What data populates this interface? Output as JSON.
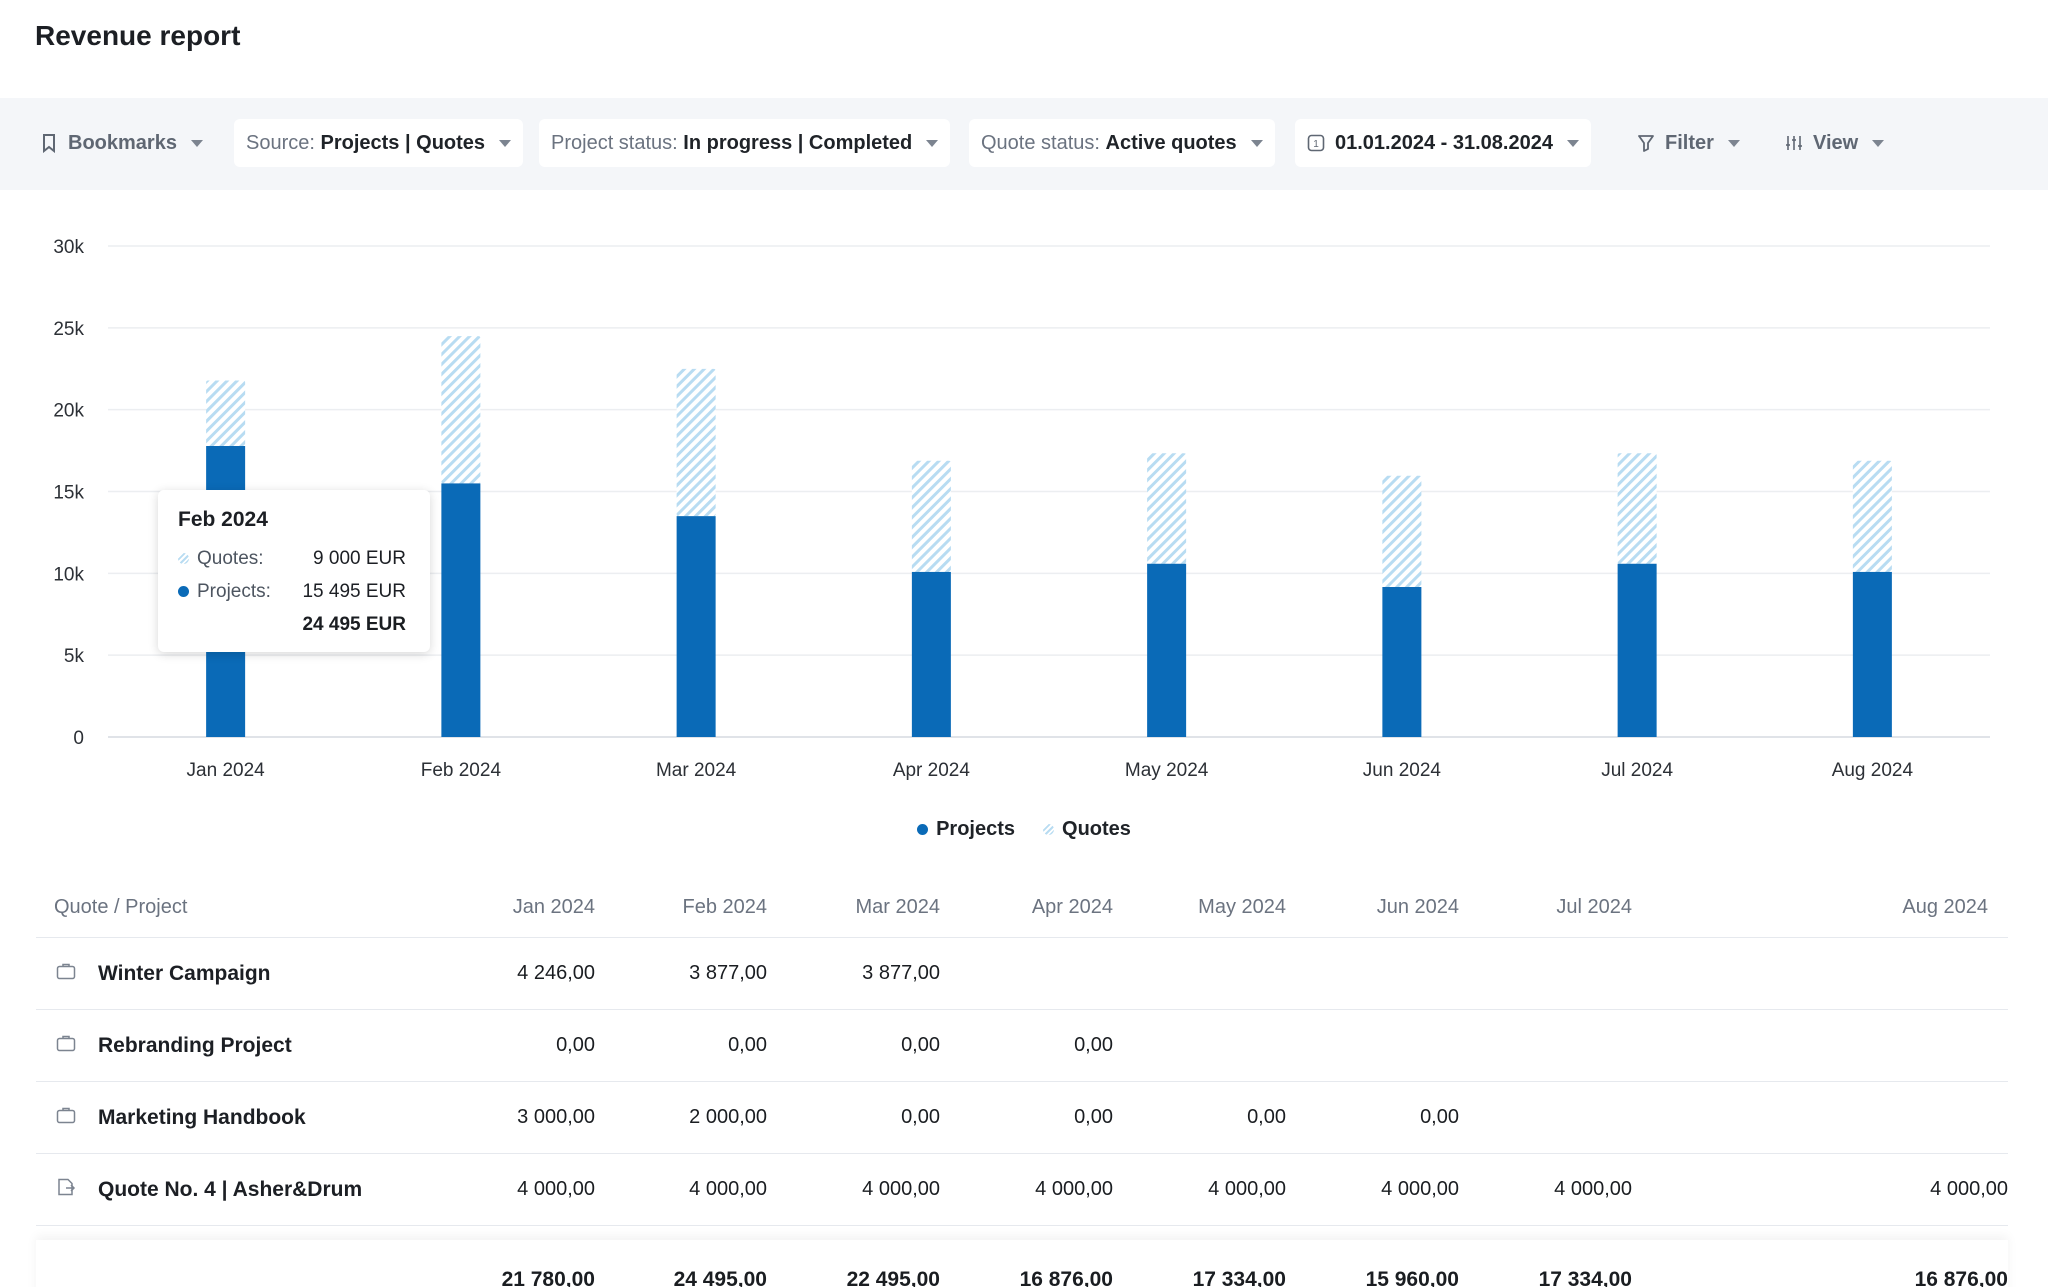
{
  "page": {
    "title": "Revenue report"
  },
  "toolbar": {
    "bookmarks": "Bookmarks",
    "source_label": "Source:",
    "source_value": "Projects | Quotes",
    "project_status_label": "Project status:",
    "project_status_value": "In progress | Completed",
    "quote_status_label": "Quote status:",
    "quote_status_value": "Active quotes",
    "date_range": "01.01.2024 - 31.08.2024",
    "date_icon_digit": "1",
    "filter": "Filter",
    "view": "View"
  },
  "colors": {
    "projects": "#0a6ab7",
    "quotes": "#b8dcf2",
    "grid": "#eceef1"
  },
  "chart_data": {
    "type": "bar",
    "stacked": true,
    "categories": [
      "Jan 2024",
      "Feb 2024",
      "Mar 2024",
      "Apr 2024",
      "May 2024",
      "Jun 2024",
      "Jul 2024",
      "Aug 2024"
    ],
    "series": [
      {
        "name": "Projects",
        "values": [
          17780,
          15495,
          13495,
          10085,
          10585,
          9165,
          10585,
          10085
        ]
      },
      {
        "name": "Quotes",
        "values": [
          4000,
          9000,
          9000,
          6791,
          6749,
          6795,
          6749,
          6791
        ]
      }
    ],
    "y_ticks": [
      "0",
      "5k",
      "10k",
      "15k",
      "20k",
      "25k",
      "30k"
    ],
    "ylim": [
      0,
      30000
    ],
    "grid": true,
    "legend_position": "bottom-center"
  },
  "legend": {
    "projects": "Projects",
    "quotes": "Quotes"
  },
  "tooltip": {
    "title": "Feb 2024",
    "quotes_label": "Quotes:",
    "quotes_value": "9 000 EUR",
    "projects_label": "Projects:",
    "projects_value": "15 495 EUR",
    "total": "24 495 EUR"
  },
  "table": {
    "headers": [
      "Quote / Project",
      "Jan 2024",
      "Feb 2024",
      "Mar 2024",
      "Apr 2024",
      "May 2024",
      "Jun 2024",
      "Jul 2024",
      "Aug 2024"
    ],
    "rows": [
      {
        "type": "project",
        "icon": "briefcase-icon",
        "name": "Winter Campaign",
        "values": [
          "4 246,00",
          "3 877,00",
          "3 877,00",
          "",
          "",
          "",
          "",
          ""
        ]
      },
      {
        "type": "project",
        "icon": "briefcase-icon",
        "name": "Rebranding Project",
        "values": [
          "0,00",
          "0,00",
          "0,00",
          "0,00",
          "",
          "",
          "",
          ""
        ]
      },
      {
        "type": "project",
        "icon": "briefcase-icon",
        "name": "Marketing Handbook",
        "values": [
          "3 000,00",
          "2 000,00",
          "0,00",
          "0,00",
          "0,00",
          "0,00",
          "",
          ""
        ]
      },
      {
        "type": "quote",
        "icon": "quote-document-icon",
        "name": "Quote No. 4 | Asher&Drum",
        "values": [
          "4 000,00",
          "4 000,00",
          "4 000,00",
          "4 000,00",
          "4 000,00",
          "4 000,00",
          "4 000,00",
          "4 000,00"
        ]
      }
    ],
    "totals": [
      "21 780,00",
      "24 495,00",
      "22 495,00",
      "16 876,00",
      "17 334,00",
      "15 960,00",
      "17 334,00",
      "16 876,00"
    ]
  }
}
